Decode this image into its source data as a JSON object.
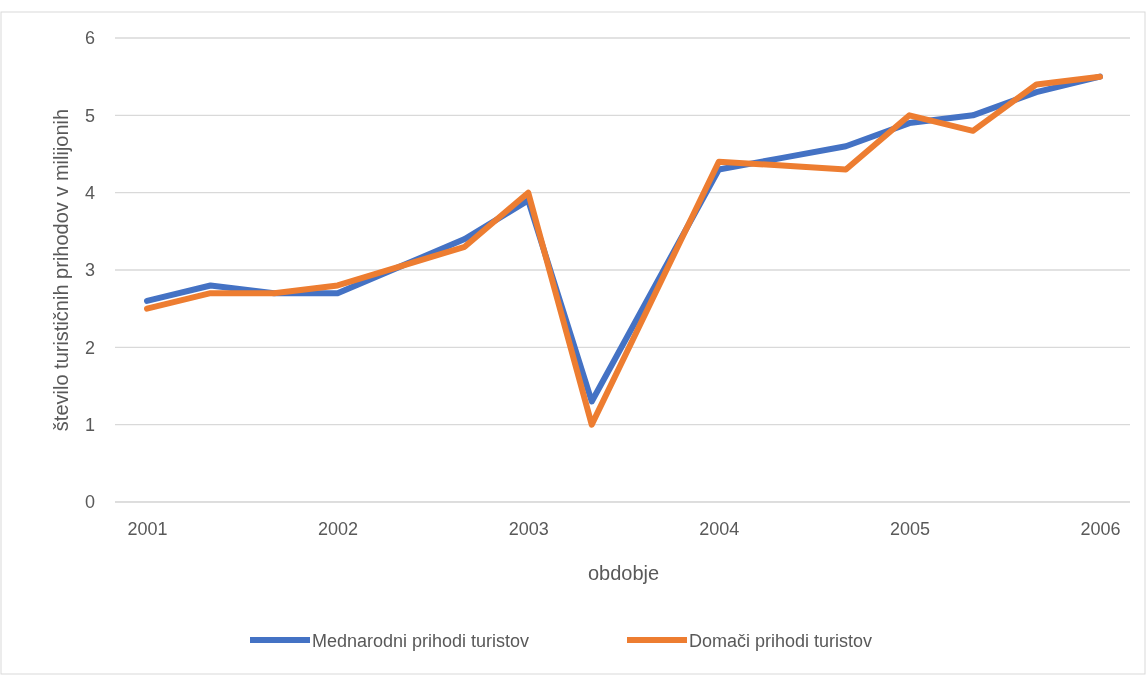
{
  "chart_data": {
    "type": "line",
    "xlabel": "obdobje",
    "ylabel": "število turističnih prihodov v milijonih",
    "categories": [
      "2001",
      null,
      null,
      "2002",
      null,
      null,
      "2003",
      null,
      null,
      "2004",
      null,
      null,
      "2005",
      null,
      null,
      "2006"
    ],
    "series": [
      {
        "name": "Mednarodni prihodi turistov",
        "color": "#4472c4",
        "values": [
          2.6,
          2.8,
          2.7,
          2.7,
          3.05,
          3.4,
          3.9,
          1.3,
          2.8,
          4.3,
          4.45,
          4.6,
          4.9,
          5.0,
          5.3,
          5.5
        ]
      },
      {
        "name": "Domači prihodi turistov",
        "color": "#ed7d31",
        "values": [
          2.5,
          2.7,
          2.7,
          2.8,
          3.05,
          3.3,
          4.0,
          1.0,
          2.7,
          4.4,
          4.35,
          4.3,
          5.0,
          4.8,
          5.4,
          5.5
        ]
      }
    ],
    "ylim": [
      0,
      6
    ],
    "yticks": [
      0,
      1,
      2,
      3,
      4,
      5,
      6
    ],
    "grid": "y",
    "legend": "bottom",
    "line_style": "solid",
    "marker": "none"
  }
}
